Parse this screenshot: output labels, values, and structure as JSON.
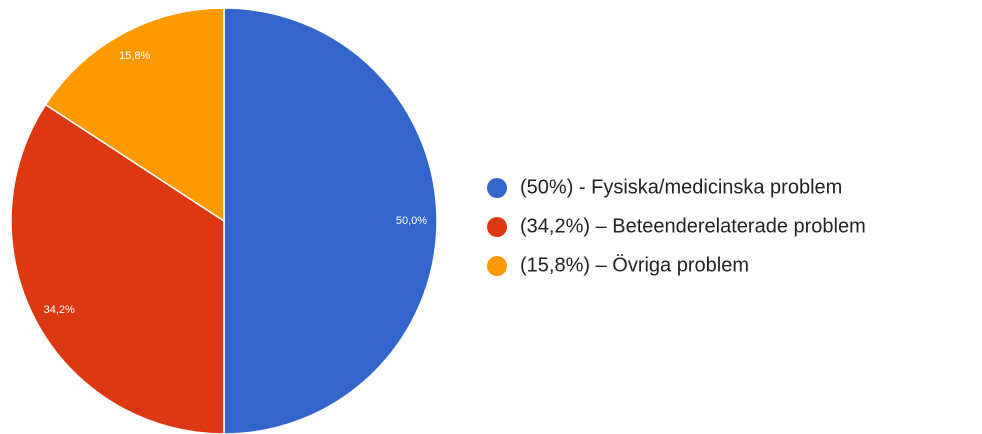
{
  "chart_data": {
    "type": "pie",
    "categories": [
      "(50%) - Fysiska/medicinska problem",
      "(34,2%) – Beteenderelaterade problem",
      "(15,8%) – Övriga problem"
    ],
    "values": [
      50,
      34.2,
      15.8
    ],
    "value_labels": [
      "50,0%",
      "34,2%",
      "15,8%"
    ],
    "colors": [
      "#3366cc",
      "#dc3912",
      "#ff9900"
    ],
    "legend": "right"
  }
}
